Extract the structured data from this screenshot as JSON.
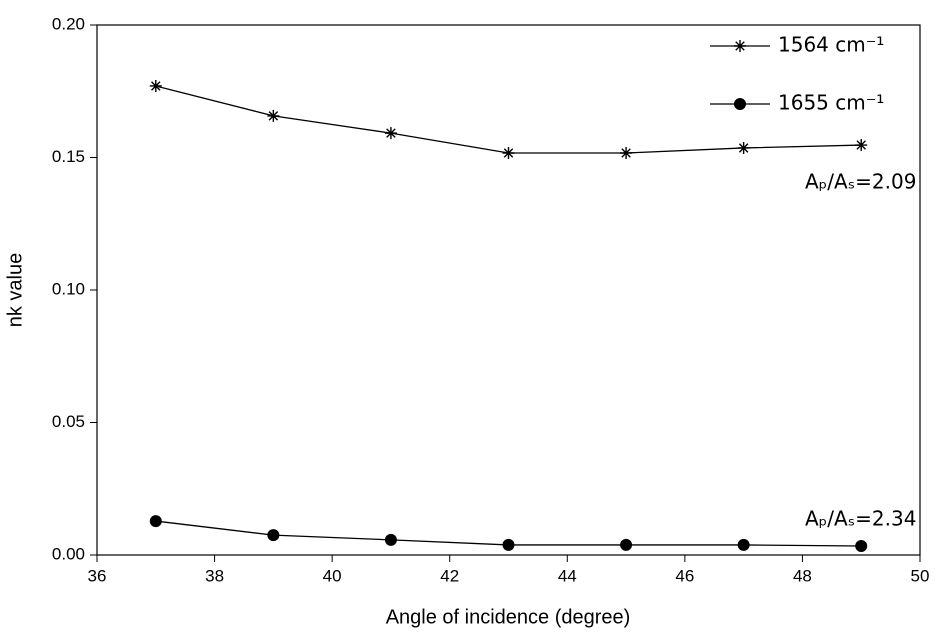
{
  "chart_data": {
    "type": "line",
    "x_label": "Angle of incidence (degree)",
    "y_label": "nk value",
    "x": [
      37,
      39,
      41,
      43,
      45,
      47,
      49
    ],
    "series": [
      {
        "name": "1564 cm⁻¹",
        "color": "#000000",
        "marker": "star",
        "values": [
          0.177,
          0.1657,
          0.1592,
          0.1517,
          0.1517,
          0.1536,
          0.1547
        ]
      },
      {
        "name": "1655 cm⁻¹",
        "color": "#000000",
        "marker": "circle",
        "values": [
          0.0128,
          0.0075,
          0.0057,
          0.0038,
          0.0038,
          0.0038,
          0.0034
        ]
      }
    ],
    "annotations": [
      "Aₚ/Aₛ=2.09",
      "Aₚ/Aₛ=2.34"
    ],
    "xlim": [
      36,
      50
    ],
    "xticks": [
      36,
      38,
      40,
      42,
      44,
      46,
      48,
      50
    ],
    "ylim": [
      0,
      0.2
    ],
    "yticks": [
      {
        "value": 0,
        "label": "0.00"
      },
      {
        "value": 0.05,
        "label": "0.05"
      },
      {
        "value": 0.1,
        "label": "0.10"
      },
      {
        "value": 0.15,
        "label": "0.15"
      },
      {
        "value": 0.2,
        "label": "0.20"
      }
    ],
    "legend": "upper right",
    "grid": false
  }
}
